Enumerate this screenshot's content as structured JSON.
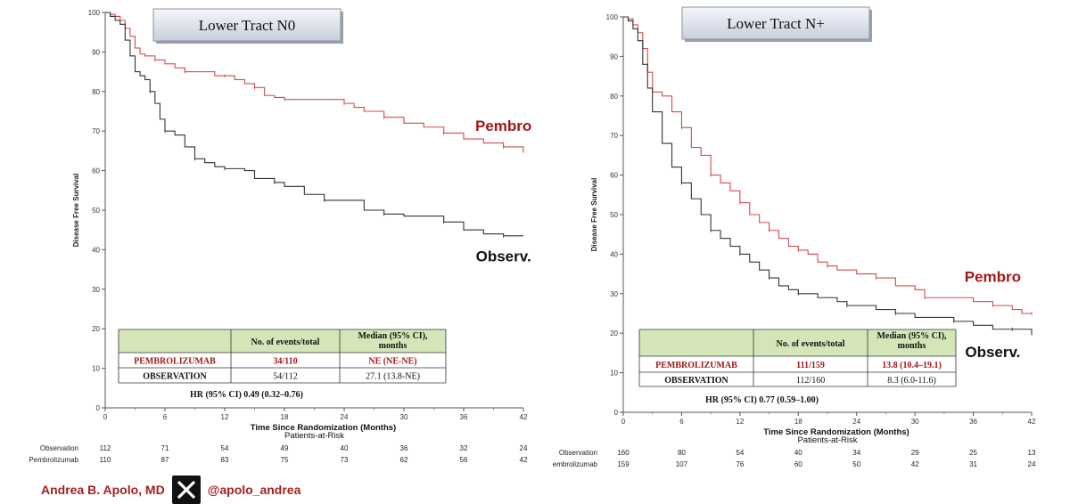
{
  "chart_data": [
    {
      "type": "line",
      "title": "Lower Tract N0",
      "ylabel": "Disease Free Survival",
      "xlabel": "Time Since Randomization (Months)",
      "xlim": [
        0,
        42
      ],
      "ylim": [
        0,
        100
      ],
      "xticks": [
        0,
        6,
        12,
        18,
        24,
        30,
        36,
        42
      ],
      "yticks": [
        0,
        10,
        20,
        30,
        40,
        50,
        60,
        70,
        80,
        90,
        100
      ],
      "series": [
        {
          "name": "Pembro",
          "color": "#d24a4a",
          "points": [
            [
              0,
              100
            ],
            [
              0.5,
              99.5
            ],
            [
              1,
              99
            ],
            [
              1.5,
              98
            ],
            [
              2,
              96
            ],
            [
              2.5,
              94
            ],
            [
              3,
              91
            ],
            [
              3.5,
              89.5
            ],
            [
              4,
              89
            ],
            [
              5,
              88
            ],
            [
              6,
              87
            ],
            [
              7,
              86
            ],
            [
              8,
              85
            ],
            [
              10,
              85
            ],
            [
              11,
              84
            ],
            [
              12,
              84
            ],
            [
              13,
              83
            ],
            [
              14,
              82
            ],
            [
              15,
              81
            ],
            [
              16,
              79
            ],
            [
              17,
              78.5
            ],
            [
              18,
              78
            ],
            [
              20,
              78
            ],
            [
              22,
              78
            ],
            [
              24,
              77
            ],
            [
              25,
              76
            ],
            [
              26,
              75
            ],
            [
              28,
              73.5
            ],
            [
              30,
              72
            ],
            [
              32,
              71
            ],
            [
              34,
              69.5
            ],
            [
              36,
              68
            ],
            [
              38,
              67
            ],
            [
              40,
              66
            ],
            [
              41,
              66
            ],
            [
              42,
              64.5
            ]
          ]
        },
        {
          "name": "Observ.",
          "color": "#333333",
          "points": [
            [
              0,
              100
            ],
            [
              0.5,
              99
            ],
            [
              1,
              98
            ],
            [
              1.5,
              97
            ],
            [
              2,
              93
            ],
            [
              2.5,
              89
            ],
            [
              3,
              85
            ],
            [
              3.5,
              84
            ],
            [
              4,
              83
            ],
            [
              4.5,
              80
            ],
            [
              5,
              77
            ],
            [
              5.5,
              73
            ],
            [
              6,
              70
            ],
            [
              7,
              69
            ],
            [
              8,
              66
            ],
            [
              9,
              63
            ],
            [
              10,
              62
            ],
            [
              11,
              61
            ],
            [
              12,
              60.5
            ],
            [
              14,
              60
            ],
            [
              15,
              58
            ],
            [
              17,
              57
            ],
            [
              18,
              56
            ],
            [
              20,
              54
            ],
            [
              22,
              52.5
            ],
            [
              24,
              52.5
            ],
            [
              26,
              50
            ],
            [
              28,
              49
            ],
            [
              30,
              48.5
            ],
            [
              32,
              48.5
            ],
            [
              34,
              47
            ],
            [
              36,
              45
            ],
            [
              38,
              44
            ],
            [
              40,
              43.5
            ],
            [
              42,
              43.5
            ]
          ]
        }
      ],
      "annotations": {
        "pembro": "Pembro",
        "observ": "Observ."
      },
      "table": {
        "header": [
          "",
          "No. of events/total",
          "Median (95% CI), months"
        ],
        "rows": [
          [
            "PEMBROLIZUMAB",
            "34/110",
            "NE (NE-NE)"
          ],
          [
            "OBSERVATION",
            "54/112",
            "27.1 (13.8-NE)"
          ]
        ],
        "hr": "HR (95% CI) 0.49 (0.32–0.76)"
      },
      "risk": {
        "title": "Patients-at-Risk",
        "rows": [
          {
            "label": "Observation",
            "values": [
              "112",
              "71",
              "54",
              "49",
              "40",
              "36",
              "32",
              "24"
            ]
          },
          {
            "label": "Pembrolizumab",
            "values": [
              "110",
              "87",
              "83",
              "75",
              "73",
              "62",
              "56",
              "42"
            ]
          }
        ]
      }
    },
    {
      "type": "line",
      "title": "Lower Tract N+",
      "ylabel": "Disease Free Survival",
      "xlabel": "Time Since Randomization (Months)",
      "xlim": [
        0,
        42
      ],
      "ylim": [
        0,
        100
      ],
      "xticks": [
        0,
        6,
        12,
        18,
        24,
        30,
        36,
        42
      ],
      "yticks": [
        0,
        10,
        20,
        30,
        40,
        50,
        60,
        70,
        80,
        90,
        100
      ],
      "series": [
        {
          "name": "Pembro",
          "color": "#d24a4a",
          "points": [
            [
              0,
              100
            ],
            [
              0.5,
              99.5
            ],
            [
              1,
              98
            ],
            [
              1.5,
              96
            ],
            [
              2,
              92
            ],
            [
              2.5,
              86
            ],
            [
              3,
              81
            ],
            [
              4,
              80
            ],
            [
              5,
              76
            ],
            [
              6,
              72
            ],
            [
              7,
              67
            ],
            [
              8,
              65
            ],
            [
              9,
              60
            ],
            [
              10,
              58
            ],
            [
              11,
              56
            ],
            [
              12,
              53
            ],
            [
              13,
              50
            ],
            [
              14,
              48
            ],
            [
              15,
              46
            ],
            [
              16,
              44
            ],
            [
              17,
              42
            ],
            [
              18,
              41
            ],
            [
              19,
              40
            ],
            [
              20,
              38
            ],
            [
              21,
              37
            ],
            [
              22,
              36
            ],
            [
              24,
              35
            ],
            [
              26,
              34
            ],
            [
              28,
              32
            ],
            [
              30,
              31
            ],
            [
              31,
              29
            ],
            [
              33,
              29
            ],
            [
              36,
              28
            ],
            [
              38,
              27
            ],
            [
              40,
              26
            ],
            [
              41,
              25
            ],
            [
              42,
              25
            ]
          ]
        },
        {
          "name": "Observ.",
          "color": "#333333",
          "points": [
            [
              0,
              100
            ],
            [
              0.5,
              99
            ],
            [
              1,
              97
            ],
            [
              1.5,
              94
            ],
            [
              2,
              88
            ],
            [
              2.5,
              82
            ],
            [
              3,
              76
            ],
            [
              4,
              68
            ],
            [
              5,
              62
            ],
            [
              6,
              58
            ],
            [
              7,
              54
            ],
            [
              8,
              50
            ],
            [
              9,
              46
            ],
            [
              10,
              44
            ],
            [
              11,
              42
            ],
            [
              12,
              40
            ],
            [
              13,
              38
            ],
            [
              14,
              36
            ],
            [
              15,
              34
            ],
            [
              16,
              32
            ],
            [
              17,
              31
            ],
            [
              18,
              30
            ],
            [
              20,
              29
            ],
            [
              22,
              28
            ],
            [
              23,
              27
            ],
            [
              25,
              27
            ],
            [
              26,
              26
            ],
            [
              28,
              25
            ],
            [
              30,
              24
            ],
            [
              32,
              24
            ],
            [
              34,
              23
            ],
            [
              36,
              22
            ],
            [
              38,
              21
            ],
            [
              40,
              21
            ],
            [
              41,
              21
            ],
            [
              42,
              19.5
            ]
          ]
        }
      ],
      "annotations": {
        "pembro": "Pembro",
        "observ": "Observ."
      },
      "table": {
        "header": [
          "",
          "No. of events/total",
          "Median (95% CI), months"
        ],
        "rows": [
          [
            "PEMBROLIZUMAB",
            "111/159",
            "13.8 (10.4–19.1)"
          ],
          [
            "OBSERVATION",
            "112/160",
            "8.3 (6.0-11.6)"
          ]
        ],
        "hr": "HR (95% CI) 0.77 (0.59–1.00)"
      },
      "risk": {
        "title": "Patients-at-Risk",
        "rows": [
          {
            "label": "Observation",
            "values": [
              "160",
              "80",
              "54",
              "40",
              "34",
              "29",
              "25",
              "13"
            ]
          },
          {
            "label": "embrolizumab",
            "values": [
              "159",
              "107",
              "76",
              "60",
              "50",
              "42",
              "31",
              "24"
            ]
          }
        ]
      }
    }
  ],
  "footer": {
    "author": "Andrea B. Apolo, MD",
    "logo_icon": "x-logo-icon",
    "handle": "@apolo_andrea"
  }
}
